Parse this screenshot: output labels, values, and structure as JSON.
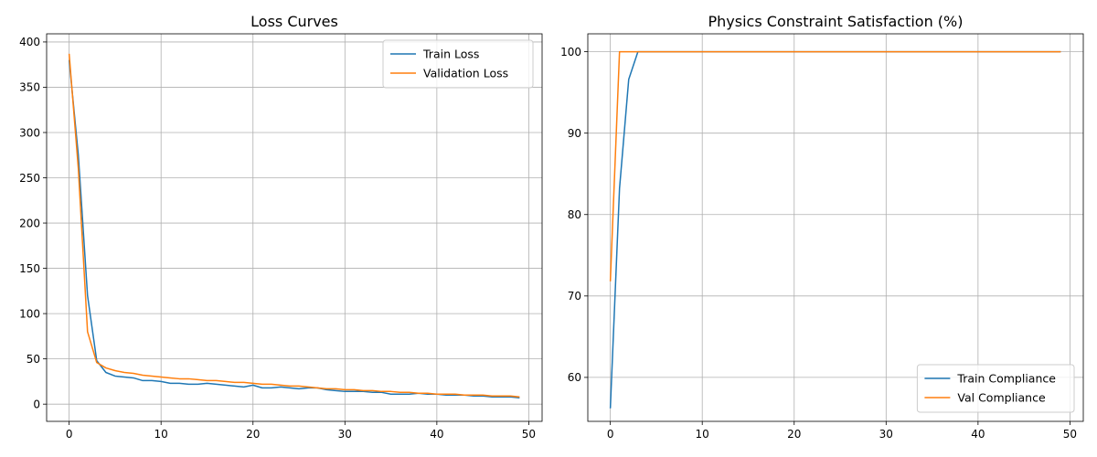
{
  "chart_data": [
    {
      "type": "line",
      "title": "Loss Curves",
      "xlabel": "",
      "ylabel": "",
      "xlim": [
        -2.45,
        51.45
      ],
      "ylim": [
        -19.0,
        409.0
      ],
      "xticks": [
        0,
        10,
        20,
        30,
        40,
        50
      ],
      "yticks": [
        0,
        50,
        100,
        150,
        200,
        250,
        300,
        350,
        400
      ],
      "grid": true,
      "legend_position": "top-right",
      "x": [
        0,
        1,
        2,
        3,
        4,
        5,
        6,
        7,
        8,
        9,
        10,
        11,
        12,
        13,
        14,
        15,
        16,
        17,
        18,
        19,
        20,
        21,
        22,
        23,
        24,
        25,
        26,
        27,
        28,
        29,
        30,
        31,
        32,
        33,
        34,
        35,
        36,
        37,
        38,
        39,
        40,
        41,
        42,
        43,
        44,
        45,
        46,
        47,
        48,
        49
      ],
      "series": [
        {
          "name": "Train Loss",
          "color": "#1f77b4",
          "values": [
            380,
            275,
            120,
            48,
            35,
            31,
            30,
            29,
            26,
            26,
            25,
            23,
            23,
            22,
            22,
            23,
            22,
            21,
            20,
            19,
            21,
            18,
            18,
            19,
            18,
            17,
            18,
            18,
            16,
            15,
            14,
            14,
            14,
            13,
            13,
            11,
            11,
            11,
            12,
            11,
            11,
            10,
            10,
            10,
            9,
            9,
            8,
            8,
            8,
            7
          ]
        },
        {
          "name": "Validation Loss",
          "color": "#ff7f0e",
          "values": [
            387,
            260,
            80,
            46,
            40,
            37,
            35,
            34,
            32,
            31,
            30,
            29,
            28,
            28,
            27,
            26,
            26,
            25,
            24,
            24,
            23,
            22,
            22,
            21,
            20,
            20,
            19,
            18,
            17,
            17,
            16,
            16,
            15,
            15,
            14,
            14,
            13,
            13,
            12,
            12,
            11,
            11,
            11,
            10,
            10,
            10,
            9,
            9,
            9,
            8
          ]
        }
      ]
    },
    {
      "type": "line",
      "title": "Physics Constraint Satisfaction (%)",
      "xlabel": "",
      "ylabel": "",
      "xlim": [
        -2.45,
        51.45
      ],
      "ylim": [
        54.6,
        102.2
      ],
      "xticks": [
        0,
        10,
        20,
        30,
        40,
        50
      ],
      "yticks": [
        60,
        70,
        80,
        90,
        100
      ],
      "grid": true,
      "legend_position": "bottom-right",
      "x": [
        0,
        1,
        2,
        3,
        4,
        5,
        6,
        7,
        8,
        9,
        10,
        11,
        12,
        13,
        14,
        15,
        16,
        17,
        18,
        19,
        20,
        21,
        22,
        23,
        24,
        25,
        26,
        27,
        28,
        29,
        30,
        31,
        32,
        33,
        34,
        35,
        36,
        37,
        38,
        39,
        40,
        41,
        42,
        43,
        44,
        45,
        46,
        47,
        48,
        49
      ],
      "series": [
        {
          "name": "Train Compliance",
          "color": "#1f77b4",
          "values": [
            56.2,
            83.2,
            96.6,
            100,
            100,
            100,
            100,
            100,
            100,
            100,
            100,
            100,
            100,
            100,
            100,
            100,
            100,
            100,
            100,
            100,
            100,
            100,
            100,
            100,
            100,
            100,
            100,
            100,
            100,
            100,
            100,
            100,
            100,
            100,
            100,
            100,
            100,
            100,
            100,
            100,
            100,
            100,
            100,
            100,
            100,
            100,
            100,
            100,
            100,
            100
          ]
        },
        {
          "name": "Val Compliance",
          "color": "#ff7f0e",
          "values": [
            71.8,
            100,
            100,
            100,
            100,
            100,
            100,
            100,
            100,
            100,
            100,
            100,
            100,
            100,
            100,
            100,
            100,
            100,
            100,
            100,
            100,
            100,
            100,
            100,
            100,
            100,
            100,
            100,
            100,
            100,
            100,
            100,
            100,
            100,
            100,
            100,
            100,
            100,
            100,
            100,
            100,
            100,
            100,
            100,
            100,
            100,
            100,
            100,
            100,
            100
          ]
        }
      ]
    }
  ]
}
